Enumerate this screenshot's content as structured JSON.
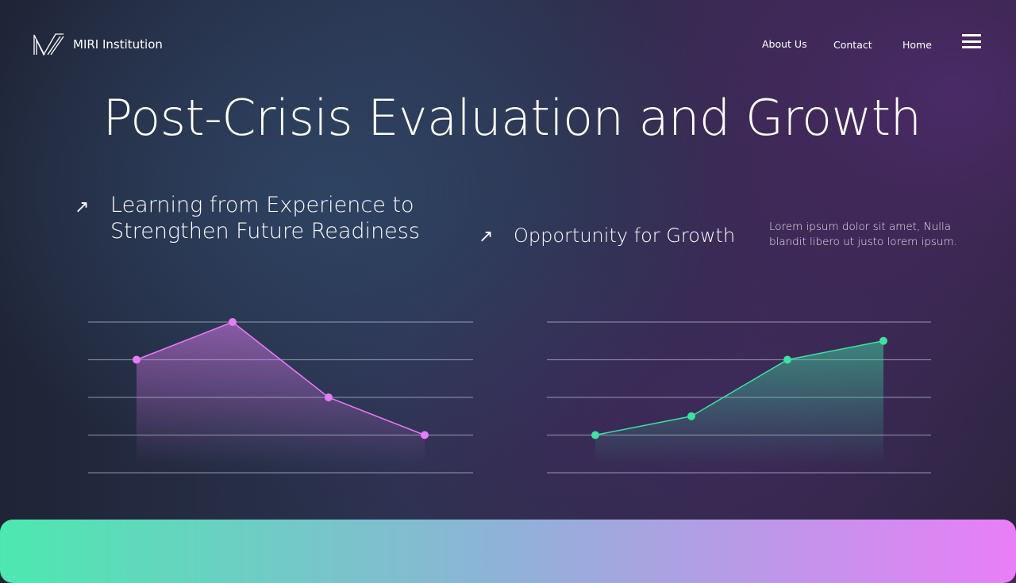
{
  "header": {
    "brand": "MIRI Institution",
    "nav": [
      "About Us",
      "Contact",
      "Home"
    ]
  },
  "title": "Post-Crisis Evaluation and Growth",
  "section_left": {
    "heading_line1": "Learning from Experience to",
    "heading_line2": "Strengthen Future Readiness"
  },
  "section_right": {
    "heading": "Opportunity for Growth",
    "description_line1": "Lorem ipsum dolor sit amet, Nulla",
    "description_line2": "blandit libero ut justo lorem ipsum."
  },
  "colors": {
    "left_series": "#e87cf5",
    "right_series": "#3ee0a4"
  },
  "chart_data": [
    {
      "type": "area",
      "x": [
        1,
        2,
        3,
        4
      ],
      "values": [
        3,
        4,
        2,
        1
      ],
      "ylim": [
        0,
        4
      ],
      "grid": true,
      "color": "#e87cf5"
    },
    {
      "type": "area",
      "x": [
        1,
        2,
        3,
        4
      ],
      "values": [
        1,
        1.5,
        3,
        3.5
      ],
      "ylim": [
        0,
        4
      ],
      "grid": true,
      "color": "#3ee0a4"
    }
  ]
}
